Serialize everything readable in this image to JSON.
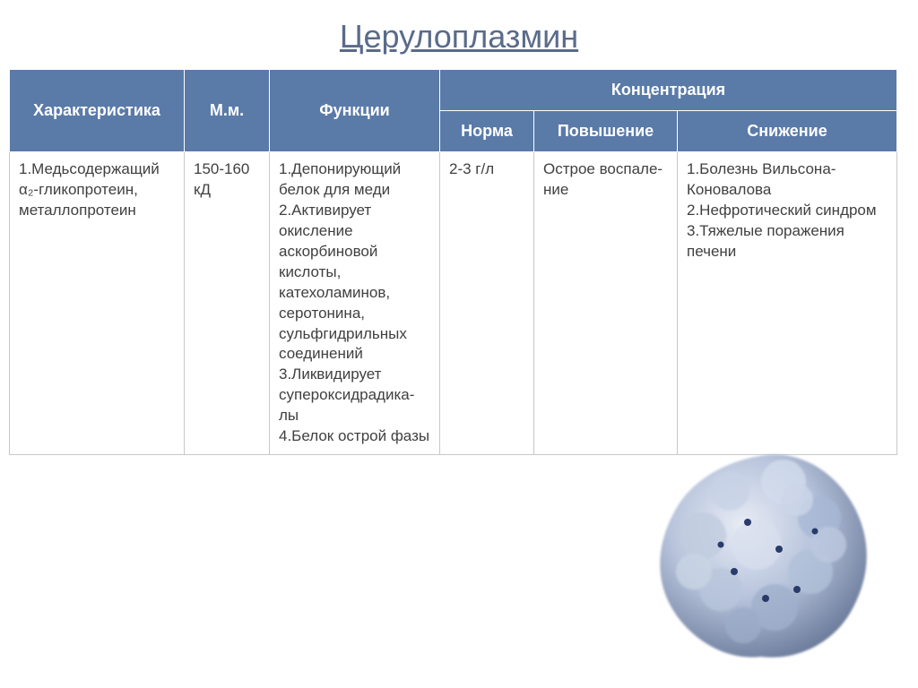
{
  "title": "Церулоплазмин",
  "table": {
    "headers": {
      "characteristic": "Характеристика",
      "mm": "М.м.",
      "functions": "Функции",
      "concentration": "Концентрация",
      "norm": "Норма",
      "increase": "Повышение",
      "decrease": "Снижение"
    },
    "row": {
      "characteristic": "1.Медьсодержащий α₂-гликопротеин, металлопротеин",
      "mm": "150-160 кД",
      "functions": "1.Депонирующий белок для меди\n2.Активирует окисление аскорбиновой кислоты, катехоламинов, серотонина, сульфгидрильных соединений\n3.Ликвидирует супероксидрадика-лы\n4.Белок острой фазы",
      "norm": "2-3  г/л",
      "increase": "Острое воспале-ние",
      "decrease": "1.Болезнь Вильсона-Коновалова\n2.Нефротический синдром\n3.Тяжелые поражения печени"
    }
  },
  "styling": {
    "title_color": "#5a6b8a",
    "title_fontsize": 36,
    "header_bg": "#5a7aa8",
    "header_text_color": "#ffffff",
    "header_fontsize": 18,
    "cell_bg": "#ffffff",
    "cell_text_color": "#404040",
    "cell_fontsize": 17,
    "cell_border_color": "#c8c8c8",
    "header_border_color": "#ffffff",
    "line_height": 1.35
  },
  "protein_image": {
    "description": "3D protein structure rendering",
    "surface_color": "#b8c4dc",
    "shadow_color": "#6a7a9a",
    "highlight_color": "#e8ecf5",
    "atom_color": "#2a3a6a",
    "position": "bottom-right"
  }
}
